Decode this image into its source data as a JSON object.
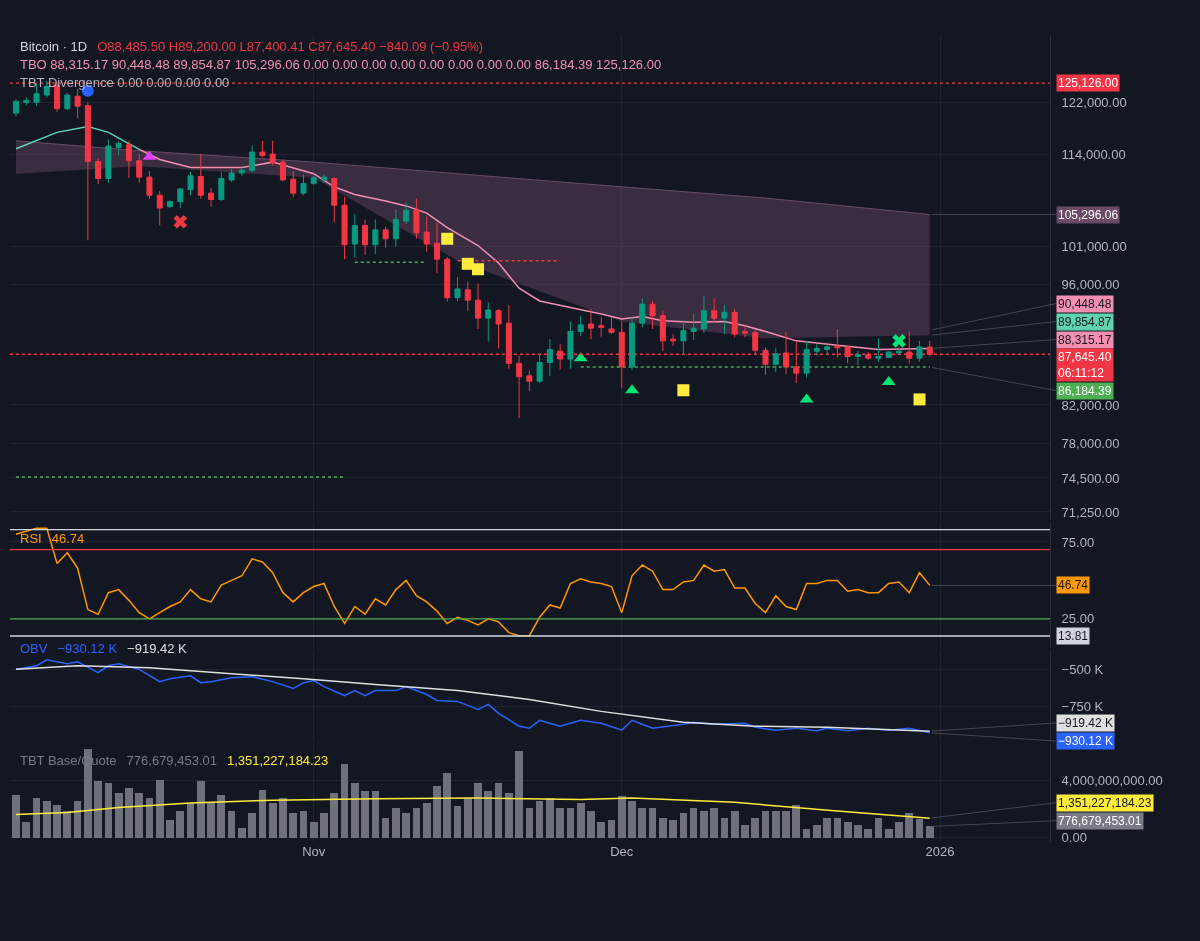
{
  "chart_data": [
    {
      "type": "candlestick",
      "title": "Bitcoin · 1D",
      "log": true,
      "grid": true,
      "tick_labels": "y",
      "annotations": [
        "O88,485.50 H89,200.00 L87,400.41 C87,645.40 −840.09 (−0.95%)",
        "TBO 88,315.17 90,448.48 89,854.87 105,296.06 0.00 0.00 0.00 0.00 0.00 0.00 0.00 0.00 86,184.39 125,126.00",
        "TBT Divergence 0.00 0.00 0.00 0.00",
        {
          "text": "105,296.06",
          "x": "2025-12-31",
          "y": 105296.06
        },
        {
          "text": "90,448.48",
          "x": "2025-12-31",
          "y": 90448.48
        },
        {
          "text": "89,854.87",
          "x": "2025-12-31",
          "y": 89854.87
        },
        {
          "text": "88,315.17",
          "x": "2025-12-31",
          "y": 88315.17
        },
        {
          "text": "86,184.39",
          "x": "2025-12-31",
          "y": 86184.39
        }
      ],
      "xlim": [
        "2025-10-02T10:00",
        "2026-01-11T17:00"
      ],
      "xticks": [
        {
          "value": "2025-11-01",
          "label": null
        },
        {
          "value": "2025-12-01",
          "label": null
        },
        {
          "value": "2026-01-01",
          "label": null
        }
      ],
      "ylim": [
        70500,
        133300
      ],
      "yticks": [
        {
          "value": 71250,
          "label": "71,250.00"
        },
        {
          "value": 74500,
          "label": "74,500.00"
        },
        {
          "value": 78000,
          "label": "78,000.00"
        },
        {
          "value": 82000,
          "label": "82,000.00"
        },
        {
          "value": 96000,
          "label": "96,000.00"
        },
        {
          "value": 101000,
          "label": "101,000.00"
        },
        {
          "value": 114000,
          "label": "114,000.00"
        },
        {
          "value": 122000,
          "label": "122,000.00"
        }
      ],
      "x": [
        "2025-10-03",
        "2025-10-04",
        "2025-10-05",
        "2025-10-06",
        "2025-10-07",
        "2025-10-08",
        "2025-10-09",
        "2025-10-10",
        "2025-10-11",
        "2025-10-12",
        "2025-10-13",
        "2025-10-14",
        "2025-10-15",
        "2025-10-16",
        "2025-10-17",
        "2025-10-18",
        "2025-10-19",
        "2025-10-20",
        "2025-10-21",
        "2025-10-22",
        "2025-10-23",
        "2025-10-24",
        "2025-10-25",
        "2025-10-26",
        "2025-10-27",
        "2025-10-28",
        "2025-10-29",
        "2025-10-30",
        "2025-10-31",
        "2025-11-01",
        "2025-11-02",
        "2025-11-03",
        "2025-11-04",
        "2025-11-05",
        "2025-11-06",
        "2025-11-07",
        "2025-11-08",
        "2025-11-09",
        "2025-11-10",
        "2025-11-11",
        "2025-11-12",
        "2025-11-13",
        "2025-11-14",
        "2025-11-15",
        "2025-11-16",
        "2025-11-17",
        "2025-11-18",
        "2025-11-19",
        "2025-11-20",
        "2025-11-21",
        "2025-11-22",
        "2025-11-23",
        "2025-11-24",
        "2025-11-25",
        "2025-11-26",
        "2025-11-27",
        "2025-11-28",
        "2025-11-29",
        "2025-11-30",
        "2025-12-01",
        "2025-12-02",
        "2025-12-03",
        "2025-12-04",
        "2025-12-05",
        "2025-12-06",
        "2025-12-07",
        "2025-12-08",
        "2025-12-09",
        "2025-12-10",
        "2025-12-11",
        "2025-12-12",
        "2025-12-13",
        "2025-12-14",
        "2025-12-15",
        "2025-12-16",
        "2025-12-17",
        "2025-12-18",
        "2025-12-19",
        "2025-12-20",
        "2025-12-21",
        "2025-12-22",
        "2025-12-23",
        "2025-12-24",
        "2025-12-25",
        "2025-12-26",
        "2025-12-27",
        "2025-12-28",
        "2025-12-29",
        "2025-12-30",
        "2025-12-31"
      ],
      "ohlc": [
        [
          120300,
          122500,
          119800,
          122200
        ],
        [
          122000,
          122800,
          121500,
          122300
        ],
        [
          122000,
          125000,
          121500,
          123400
        ],
        [
          123200,
          125500,
          122800,
          124600
        ],
        [
          124800,
          125200,
          120500,
          121000
        ],
        [
          121000,
          123500,
          120800,
          123200
        ],
        [
          123000,
          124200,
          119500,
          121400
        ],
        [
          121500,
          122000,
          101800,
          112900
        ],
        [
          112900,
          113300,
          109600,
          110400
        ],
        [
          110400,
          116200,
          109800,
          115200
        ],
        [
          115000,
          116000,
          113800,
          115600
        ],
        [
          115400,
          116000,
          110500,
          113000
        ],
        [
          113000,
          114000,
          109800,
          110600
        ],
        [
          110600,
          111500,
          107500,
          108000
        ],
        [
          108000,
          108600,
          103800,
          106200
        ],
        [
          106400,
          107300,
          106200,
          107100
        ],
        [
          107100,
          109000,
          106200,
          108900
        ],
        [
          108800,
          111400,
          108000,
          110800
        ],
        [
          110700,
          114000,
          107500,
          108000
        ],
        [
          108300,
          109000,
          106400,
          107400
        ],
        [
          107400,
          111300,
          107200,
          110400
        ],
        [
          110200,
          111800,
          109900,
          111200
        ],
        [
          111200,
          112000,
          110800,
          111600
        ],
        [
          111600,
          115300,
          111300,
          114300
        ],
        [
          114300,
          116000,
          113500,
          113800
        ],
        [
          114000,
          116000,
          112300,
          112700
        ],
        [
          112800,
          113200,
          110000,
          110200
        ],
        [
          110300,
          111500,
          107700,
          108300
        ],
        [
          108300,
          111000,
          108000,
          109700
        ],
        [
          109700,
          110800,
          109500,
          110500
        ],
        [
          110200,
          111000,
          109800,
          110600
        ],
        [
          110400,
          110600,
          104200,
          106600
        ],
        [
          106600,
          107800,
          99300,
          101200
        ],
        [
          101300,
          105400,
          99500,
          103800
        ],
        [
          103800,
          104600,
          99900,
          101200
        ],
        [
          101200,
          104600,
          100000,
          103200
        ],
        [
          103200,
          103600,
          100800,
          102000
        ],
        [
          102000,
          106000,
          101000,
          104600
        ],
        [
          104400,
          107000,
          104000,
          105900
        ],
        [
          105900,
          107500,
          102000,
          102800
        ],
        [
          102900,
          105000,
          100300,
          101300
        ],
        [
          101400,
          104200,
          97500,
          99300
        ],
        [
          99300,
          99600,
          93900,
          94400
        ],
        [
          94400,
          97000,
          94000,
          95500
        ],
        [
          95400,
          96400,
          92800,
          94100
        ],
        [
          94100,
          96200,
          90600,
          91900
        ],
        [
          91900,
          93800,
          89100,
          92900
        ],
        [
          92800,
          93000,
          88300,
          91200
        ],
        [
          91300,
          93500,
          86000,
          86600
        ],
        [
          86600,
          87500,
          80600,
          85100
        ],
        [
          85200,
          85800,
          83500,
          84600
        ],
        [
          84600,
          87700,
          84400,
          86700
        ],
        [
          86700,
          89400,
          85200,
          88200
        ],
        [
          88000,
          88800,
          85900,
          87100
        ],
        [
          87100,
          91500,
          86000,
          90300
        ],
        [
          90300,
          92200,
          89800,
          91100
        ],
        [
          91200,
          93000,
          89400,
          90700
        ],
        [
          91000,
          92000,
          89600,
          90800
        ],
        [
          90600,
          92000,
          90000,
          90200
        ],
        [
          90200,
          91500,
          83800,
          86200
        ],
        [
          86200,
          92100,
          85800,
          91300
        ],
        [
          91300,
          94300,
          90800,
          93600
        ],
        [
          93600,
          94000,
          90600,
          92200
        ],
        [
          92200,
          92800,
          88000,
          89200
        ],
        [
          89400,
          90000,
          88600,
          89200
        ],
        [
          89200,
          91700,
          87600,
          90400
        ],
        [
          90300,
          92400,
          89300,
          90700
        ],
        [
          90600,
          94600,
          90100,
          92800
        ],
        [
          92800,
          94300,
          91400,
          91900
        ],
        [
          91900,
          93500,
          90000,
          92600
        ],
        [
          92600,
          93000,
          89600,
          90000
        ],
        [
          90300,
          91000,
          89600,
          90100
        ],
        [
          90200,
          90500,
          87600,
          88100
        ],
        [
          88100,
          88400,
          85300,
          86500
        ],
        [
          86500,
          88400,
          85600,
          87700
        ],
        [
          87800,
          90300,
          85400,
          86200
        ],
        [
          86200,
          89100,
          84400,
          85500
        ],
        [
          85500,
          89200,
          85000,
          88200
        ],
        [
          88000,
          88800,
          87500,
          88300
        ],
        [
          88200,
          89000,
          87600,
          88500
        ],
        [
          88600,
          90600,
          87300,
          88400
        ],
        [
          88500,
          88700,
          86600,
          87400
        ],
        [
          87400,
          88000,
          86400,
          87600
        ],
        [
          87600,
          87900,
          87000,
          87200
        ],
        [
          87200,
          89500,
          86800,
          87400
        ],
        [
          87300,
          88000,
          87200,
          87900
        ],
        [
          87800,
          88300,
          87700,
          88000
        ],
        [
          87900,
          90300,
          86600,
          87200
        ],
        [
          87200,
          89200,
          86800,
          88500
        ],
        [
          88485.5,
          89200.0,
          87400.41,
          87645.4
        ]
      ],
      "series": [
        {
          "type": "line",
          "color": "#6b4a66",
          "x": [
            "2025-10-03",
            "2025-10-15",
            "2025-11-01",
            "2025-11-15",
            "2025-12-01",
            "2025-12-15",
            "2025-12-31"
          ],
          "values": [
            116000,
            114500,
            112800,
            111100,
            109200,
            107600,
            105296.06
          ],
          "lower": [
            111100,
            112200,
            110500,
            99100,
            91500,
            89500,
            89854.87
          ],
          "upper": [
            116000,
            114500,
            112800,
            111100,
            109200,
            107600,
            105296.06
          ]
        },
        {
          "type": "line",
          "color": "#5fd3b0",
          "x": [
            "2025-10-03",
            "2025-10-07",
            "2025-10-10",
            "2025-10-12",
            "2025-10-15"
          ],
          "values": [
            114800,
            117300,
            118200,
            117300,
            114700
          ]
        },
        {
          "type": "line",
          "color": "#f48fb1",
          "x": [
            "2025-10-15",
            "2025-10-17",
            "2025-10-20",
            "2025-10-25",
            "2025-10-28",
            "2025-11-01",
            "2025-11-03",
            "2025-11-05",
            "2025-11-08",
            "2025-11-10",
            "2025-11-12",
            "2025-11-14",
            "2025-11-17",
            "2025-11-19",
            "2025-11-21",
            "2025-11-23",
            "2025-11-26",
            "2025-11-29",
            "2025-12-01",
            "2025-12-03",
            "2025-12-05",
            "2025-12-08",
            "2025-12-11",
            "2025-12-13",
            "2025-12-15",
            "2025-12-18",
            "2025-12-22",
            "2025-12-26",
            "2025-12-31"
          ],
          "values": [
            114700,
            113200,
            112000,
            112000,
            112800,
            111100,
            109200,
            108100,
            107200,
            106500,
            105500,
            103500,
            101100,
            98800,
            95600,
            94000,
            93200,
            92400,
            91800,
            92100,
            91600,
            91400,
            91500,
            91000,
            90300,
            89200,
            88700,
            88200,
            88315.17
          ]
        },
        {
          "type": "line",
          "color": "#4caf50",
          "line_style": "dotted",
          "x": [
            "2025-10-03",
            "2025-11-04"
          ],
          "values": [
            74600,
            74600
          ]
        },
        {
          "type": "line",
          "color": "#4caf50",
          "line_style": "dotted",
          "x": [
            "2025-11-05",
            "2025-11-12"
          ],
          "values": [
            98900,
            98900
          ]
        },
        {
          "type": "line",
          "color": "#f23645",
          "line_style": "dotted",
          "x": [
            "2025-11-15",
            "2025-11-25"
          ],
          "values": [
            99100,
            99100
          ]
        },
        {
          "type": "line",
          "color": "#4caf50",
          "line_style": "dotted",
          "x": [
            "2025-11-27",
            "2025-12-31"
          ],
          "values": [
            86184.39,
            86184.39
          ]
        },
        {
          "type": "scatter",
          "marker": "triangle",
          "color": "#00e676",
          "x": [
            "2025-11-27",
            "2025-12-02",
            "2025-12-19",
            "2025-12-27"
          ],
          "values": [
            87200,
            83600,
            82600,
            84500
          ]
        },
        {
          "type": "scatter",
          "marker": "square",
          "color": "#ffeb3b",
          "x": [
            "2025-11-14",
            "2025-11-16",
            "2025-11-17",
            "2025-12-07",
            "2025-12-30"
          ],
          "values": [
            102000,
            98700,
            98000,
            83600,
            82600
          ]
        },
        {
          "type": "scatter",
          "marker": "cross",
          "color": "#f23645",
          "x": [
            "2025-10-19"
          ],
          "values": [
            104300
          ]
        },
        {
          "type": "scatter",
          "marker": "cross",
          "color": "#00e676",
          "x": [
            "2025-12-28"
          ],
          "values": [
            89200
          ]
        },
        {
          "type": "scatter",
          "marker": "triangle",
          "color": "#e040fb",
          "x": [
            "2025-10-16"
          ],
          "values": [
            113600
          ]
        },
        {
          "type": "scatter",
          "marker": "circle",
          "color": "#2962ff",
          "x": [
            "2025-10-10"
          ],
          "values": [
            123900
          ]
        }
      ],
      "ref_lines": [
        {
          "axis": "y",
          "value": 125126,
          "label": "125,126.00",
          "color": "#f23645",
          "line_style": "dotted"
        },
        {
          "axis": "y",
          "value": 87645.4,
          "label": "87,645.40\n06:11:12",
          "color": "#f23645",
          "line_style": "dotted"
        }
      ]
    },
    {
      "type": "line",
      "grid": true,
      "tick_labels": "y",
      "xlim": [
        "2025-10-02T10:00",
        "2026-01-11T17:00"
      ],
      "xticks": [
        {
          "value": "2025-11-01",
          "label": null
        },
        {
          "value": "2025-12-01",
          "label": null
        },
        {
          "value": "2026-01-01",
          "label": null
        }
      ],
      "ylim": [
        6,
        88
      ],
      "yticks": [
        {
          "value": 25,
          "label": "25.00"
        },
        {
          "value": 75,
          "label": "75.00"
        }
      ],
      "x": [
        "2025-10-03",
        "2025-10-04",
        "2025-10-05",
        "2025-10-06",
        "2025-10-07",
        "2025-10-08",
        "2025-10-09",
        "2025-10-10",
        "2025-10-11",
        "2025-10-12",
        "2025-10-13",
        "2025-10-14",
        "2025-10-15",
        "2025-10-16",
        "2025-10-17",
        "2025-10-18",
        "2025-10-19",
        "2025-10-20",
        "2025-10-21",
        "2025-10-22",
        "2025-10-23",
        "2025-10-24",
        "2025-10-25",
        "2025-10-26",
        "2025-10-27",
        "2025-10-28",
        "2025-10-29",
        "2025-10-30",
        "2025-10-31",
        "2025-11-01",
        "2025-11-02",
        "2025-11-03",
        "2025-11-04",
        "2025-11-05",
        "2025-11-06",
        "2025-11-07",
        "2025-11-08",
        "2025-11-09",
        "2025-11-10",
        "2025-11-11",
        "2025-11-12",
        "2025-11-13",
        "2025-11-14",
        "2025-11-15",
        "2025-11-16",
        "2025-11-17",
        "2025-11-18",
        "2025-11-19",
        "2025-11-20",
        "2025-11-21",
        "2025-11-22",
        "2025-11-23",
        "2025-11-24",
        "2025-11-25",
        "2025-11-26",
        "2025-11-27",
        "2025-11-28",
        "2025-11-29",
        "2025-11-30",
        "2025-12-01",
        "2025-12-02",
        "2025-12-03",
        "2025-12-04",
        "2025-12-05",
        "2025-12-06",
        "2025-12-07",
        "2025-12-08",
        "2025-12-09",
        "2025-12-10",
        "2025-12-11",
        "2025-12-12",
        "2025-12-13",
        "2025-12-14",
        "2025-12-15",
        "2025-12-16",
        "2025-12-17",
        "2025-12-18",
        "2025-12-19",
        "2025-12-20",
        "2025-12-21",
        "2025-12-22",
        "2025-12-23",
        "2025-12-24",
        "2025-12-25",
        "2025-12-26",
        "2025-12-27",
        "2025-12-28",
        "2025-12-29",
        "2025-12-30",
        "2025-12-31"
      ],
      "series": [
        {
          "name": "RSI",
          "color": "#ff9800",
          "values": [
            80,
            82,
            84,
            84,
            61,
            68,
            58,
            31,
            28,
            42,
            44,
            37,
            29,
            25,
            29,
            33,
            36,
            44,
            38,
            36,
            47,
            50,
            53,
            64,
            62,
            55,
            42,
            36,
            42,
            46,
            48,
            33,
            22,
            33,
            28,
            38,
            34,
            44,
            50,
            40,
            36,
            30,
            22,
            26,
            24,
            21,
            25,
            23,
            16,
            14,
            14,
            26,
            34,
            32,
            48,
            51,
            49,
            48,
            46,
            29,
            53,
            60,
            56,
            44,
            44,
            49,
            50,
            60,
            56,
            57,
            45,
            45,
            35,
            29,
            40,
            33,
            31,
            48,
            48,
            50,
            50,
            43,
            44,
            42,
            42,
            48,
            49,
            42,
            55,
            46.74
          ]
        }
      ],
      "annotations": [
        "46.74",
        {
          "text": "46.74",
          "x": "2025-12-31",
          "y": 46.74
        }
      ],
      "ref_lines": [
        {
          "axis": "y",
          "value": 83,
          "color": "#d1d4dc",
          "line_style": "solid"
        },
        {
          "axis": "y",
          "value": 70,
          "color": "#f23645",
          "line_style": "solid"
        },
        {
          "axis": "y",
          "value": 25,
          "color": "#4caf50",
          "line_style": "solid"
        },
        {
          "axis": "y",
          "value": 13.81,
          "label": "13.81",
          "color": "#d1d4dc",
          "line_style": "solid"
        }
      ]
    },
    {
      "type": "line",
      "grid": true,
      "tick_labels": "y",
      "xlim": [
        "2025-10-02T10:00",
        "2026-01-11T17:00"
      ],
      "xticks": [
        {
          "value": "2025-11-01",
          "label": null
        },
        {
          "value": "2025-12-01",
          "label": null
        },
        {
          "value": "2026-01-01",
          "label": null
        }
      ],
      "ylim": [
        -993,
        -365
      ],
      "yticks": [
        {
          "value": -750,
          "label": "−750 K"
        },
        {
          "value": -500,
          "label": "−500 K"
        }
      ],
      "series": [
        {
          "name": "OBV",
          "color": "#2962ff",
          "x": [
            "2025-10-03",
            "2025-10-05",
            "2025-10-06",
            "2025-10-08",
            "2025-10-09",
            "2025-10-11",
            "2025-10-12",
            "2025-10-13",
            "2025-10-15",
            "2025-10-17",
            "2025-10-18",
            "2025-10-20",
            "2025-10-21",
            "2025-10-22",
            "2025-10-24",
            "2025-10-26",
            "2025-10-28",
            "2025-10-30",
            "2025-10-31",
            "2025-11-01",
            "2025-11-02",
            "2025-11-04",
            "2025-11-05",
            "2025-11-06",
            "2025-11-07",
            "2025-11-09",
            "2025-11-10",
            "2025-11-12",
            "2025-11-13",
            "2025-11-15",
            "2025-11-16",
            "2025-11-17",
            "2025-11-18",
            "2025-11-19",
            "2025-11-21",
            "2025-11-22",
            "2025-11-23",
            "2025-11-25",
            "2025-11-27",
            "2025-11-29",
            "2025-12-01",
            "2025-12-02",
            "2025-12-04",
            "2025-12-07",
            "2025-12-08",
            "2025-12-10",
            "2025-12-13",
            "2025-12-14",
            "2025-12-16",
            "2025-12-18",
            "2025-12-20",
            "2025-12-21",
            "2025-12-23",
            "2025-12-25",
            "2025-12-27",
            "2025-12-29",
            "2025-12-31"
          ],
          "values": [
            -497,
            -473,
            -432,
            -459,
            -446,
            -520,
            -473,
            -459,
            -497,
            -581,
            -561,
            -541,
            -588,
            -581,
            -554,
            -547,
            -581,
            -628,
            -588,
            -574,
            -615,
            -676,
            -642,
            -676,
            -642,
            -642,
            -615,
            -669,
            -709,
            -716,
            -743,
            -770,
            -736,
            -797,
            -885,
            -899,
            -845,
            -885,
            -845,
            -865,
            -912,
            -845,
            -899,
            -872,
            -858,
            -872,
            -865,
            -892,
            -912,
            -899,
            -916,
            -899,
            -916,
            -899,
            -912,
            -899,
            -930.12
          ]
        },
        {
          "color": "#e0e0e0",
          "x": [
            "2025-10-03",
            "2025-10-09",
            "2025-10-16",
            "2025-10-24",
            "2025-10-31",
            "2025-11-07",
            "2025-11-15",
            "2025-11-22",
            "2025-11-29",
            "2025-12-07",
            "2025-12-14",
            "2025-12-21",
            "2025-12-31"
          ],
          "values": [
            -497,
            -473,
            -486,
            -527,
            -561,
            -601,
            -642,
            -703,
            -784,
            -858,
            -885,
            -892,
            -919.42
          ]
        }
      ],
      "annotations": [
        "−930.12 K",
        "−919.42 K",
        {
          "text": "−930.12 K",
          "x": "2025-12-31",
          "y": -930.12
        },
        {
          "text": "−919.42 K",
          "x": "2025-12-31",
          "y": -919.42
        }
      ]
    },
    {
      "type": "bar",
      "grid": true,
      "xlim": [
        "2025-10-02T10:00",
        "2026-01-11T17:00"
      ],
      "xticks": [
        {
          "value": "2025-11-01",
          "label": "Nov"
        },
        {
          "value": "2025-12-01",
          "label": "Dec"
        },
        {
          "value": "2026-01-01",
          "label": "2026"
        }
      ],
      "ylim": [
        -300000000,
        6500000000
      ],
      "yticks": [
        {
          "value": 0,
          "label": "0.00"
        },
        {
          "value": 4000000000,
          "label": "4,000,000,000.00"
        }
      ],
      "x": [
        "2025-10-03",
        "2025-10-04",
        "2025-10-05",
        "2025-10-06",
        "2025-10-07",
        "2025-10-08",
        "2025-10-09",
        "2025-10-10",
        "2025-10-11",
        "2025-10-12",
        "2025-10-13",
        "2025-10-14",
        "2025-10-15",
        "2025-10-16",
        "2025-10-17",
        "2025-10-18",
        "2025-10-19",
        "2025-10-20",
        "2025-10-21",
        "2025-10-22",
        "2025-10-23",
        "2025-10-24",
        "2025-10-25",
        "2025-10-26",
        "2025-10-27",
        "2025-10-28",
        "2025-10-29",
        "2025-10-30",
        "2025-10-31",
        "2025-11-01",
        "2025-11-02",
        "2025-11-03",
        "2025-11-04",
        "2025-11-05",
        "2025-11-06",
        "2025-11-07",
        "2025-11-08",
        "2025-11-09",
        "2025-11-10",
        "2025-11-11",
        "2025-11-12",
        "2025-11-13",
        "2025-11-14",
        "2025-11-15",
        "2025-11-16",
        "2025-11-17",
        "2025-11-18",
        "2025-11-19",
        "2025-11-20",
        "2025-11-21",
        "2025-11-22",
        "2025-11-23",
        "2025-11-24",
        "2025-11-25",
        "2025-11-26",
        "2025-11-27",
        "2025-11-28",
        "2025-11-29",
        "2025-11-30",
        "2025-12-01",
        "2025-12-02",
        "2025-12-03",
        "2025-12-04",
        "2025-12-05",
        "2025-12-06",
        "2025-12-07",
        "2025-12-08",
        "2025-12-09",
        "2025-12-10",
        "2025-12-11",
        "2025-12-12",
        "2025-12-13",
        "2025-12-14",
        "2025-12-15",
        "2025-12-16",
        "2025-12-17",
        "2025-12-18",
        "2025-12-19",
        "2025-12-20",
        "2025-12-21",
        "2025-12-22",
        "2025-12-23",
        "2025-12-24",
        "2025-12-25",
        "2025-12-26",
        "2025-12-27",
        "2025-12-28",
        "2025-12-29",
        "2025-12-30",
        "2025-12-31"
      ],
      "series": [
        {
          "name": "TBT Base/Quote",
          "color": "#787b86",
          "values": [
            2970000000,
            1060000000,
            2760000000,
            2560000000,
            2290000000,
            1880000000,
            2560000000,
            6170000000,
            3920000000,
            3790000000,
            3100000000,
            3450000000,
            3100000000,
            2760000000,
            3990000000,
            1200000000,
            1880000000,
            2430000000,
            3920000000,
            2430000000,
            2970000000,
            1880000000,
            700000000,
            1740000000,
            3310000000,
            2430000000,
            2760000000,
            1740000000,
            1880000000,
            1060000000,
            1740000000,
            3100000000,
            5120000000,
            3790000000,
            3240000000,
            3240000000,
            1400000000,
            2090000000,
            1740000000,
            2090000000,
            2430000000,
            3580000000,
            4470000000,
            2220000000,
            2760000000,
            3790000000,
            3240000000,
            3790000000,
            3100000000,
            6030000000,
            2090000000,
            2560000000,
            2760000000,
            2090000000,
            2090000000,
            2430000000,
            1880000000,
            1060000000,
            1200000000,
            2900000000,
            2560000000,
            2090000000,
            2090000000,
            1400000000,
            1200000000,
            1740000000,
            2090000000,
            1880000000,
            2090000000,
            1400000000,
            1880000000,
            890000000,
            1400000000,
            1880000000,
            1880000000,
            1880000000,
            2290000000,
            590000000,
            890000000,
            1400000000,
            1400000000,
            1060000000,
            890000000,
            590000000,
            1400000000,
            590000000,
            1060000000,
            1740000000,
            1330000000,
            776679453.01
          ]
        },
        {
          "type": "line",
          "color": "#ffeb3b",
          "x": [
            "2025-10-03",
            "2025-10-08",
            "2025-10-13",
            "2025-10-20",
            "2025-10-28",
            "2025-11-07",
            "2025-11-17",
            "2025-11-27",
            "2025-12-02",
            "2025-12-12",
            "2025-12-17",
            "2025-12-22",
            "2025-12-31"
          ],
          "values": [
            1600000000,
            1750000000,
            2100000000,
            2400000000,
            2600000000,
            2700000000,
            2750000000,
            2650000000,
            2750000000,
            2450000000,
            2150000000,
            1850000000,
            1351227184.23
          ]
        }
      ],
      "annotations": [
        "776,679,453.01",
        "1,351,227,184.23",
        {
          "text": "776,679,453.01",
          "x": "2025-12-31",
          "y": 776679453.01
        },
        {
          "text": "1,351,227,184.23",
          "x": "2025-12-31",
          "y": 1351227184.23
        }
      ]
    }
  ]
}
